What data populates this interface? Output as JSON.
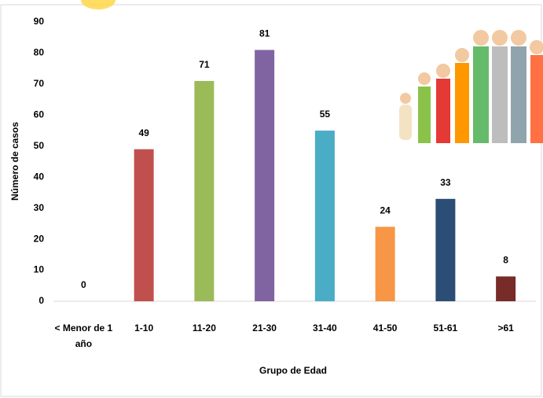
{
  "chart_data": {
    "type": "bar",
    "categories": [
      "< Menor de 1 año",
      "1-10",
      "11-20",
      "21-30",
      "31-40",
      "41-50",
      "51-61",
      ">61"
    ],
    "values": [
      0,
      49,
      71,
      81,
      55,
      24,
      33,
      8
    ],
    "colors": [
      "#4472c4",
      "#c0504d",
      "#9bbb59",
      "#8064a2",
      "#4bacc6",
      "#f79646",
      "#2c4d75",
      "#772c2a"
    ],
    "ylim": [
      0,
      90
    ],
    "yticks": [
      0,
      10,
      20,
      30,
      40,
      50,
      60,
      70,
      80,
      90
    ],
    "grid": false,
    "x_label": "Grupo de Edad",
    "y_label": "Número de casos"
  }
}
